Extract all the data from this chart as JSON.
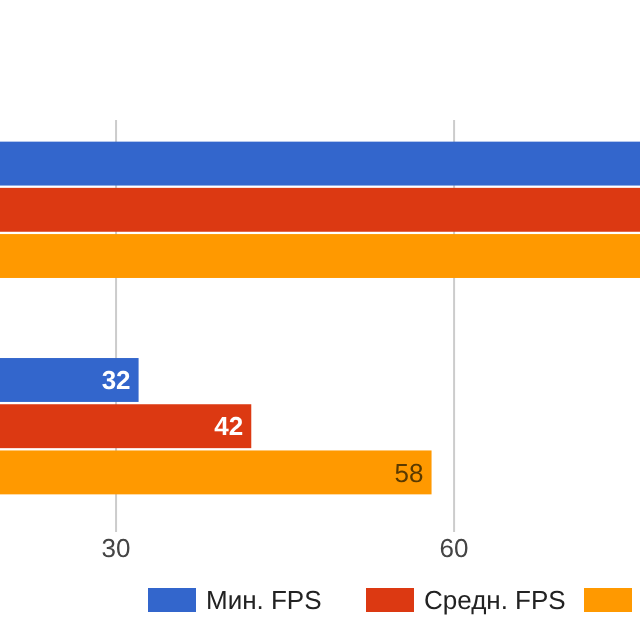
{
  "chart_data": {
    "type": "bar",
    "orientation": "horizontal",
    "categories": [
      null,
      null
    ],
    "series": [
      {
        "name": "Мин. FPS",
        "color": "#3366cc",
        "values": [
          76.5,
          32
        ],
        "value_labels": [
          null,
          "32"
        ]
      },
      {
        "name": "Средн. FPS",
        "color": "#dc3912",
        "values": [
          76.5,
          42
        ],
        "value_labels": [
          null,
          "42"
        ]
      },
      {
        "color": "#ff9900",
        "values": [
          76.5,
          58
        ],
        "value_labels": [
          null,
          "58"
        ]
      }
    ],
    "xlim": [
      19.7,
      76.5
    ],
    "xticks": [
      30,
      60
    ],
    "grid": "x",
    "legend": "bottom"
  }
}
